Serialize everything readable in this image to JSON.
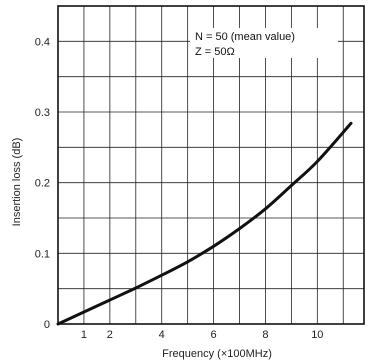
{
  "chart_data": {
    "type": "line",
    "title": "",
    "xlabel": "Frequency (×100MHz)",
    "ylabel": "Insertion loss (dB)",
    "xlim": [
      0,
      11.8
    ],
    "ylim": [
      0,
      0.45
    ],
    "x_ticks": [
      1,
      2,
      4,
      6,
      8,
      10
    ],
    "y_ticks": [
      0,
      0.1,
      0.2,
      0.3,
      0.4
    ],
    "y_tick_labels": [
      "0",
      "0.1",
      "0.2",
      "0.3",
      "0.4"
    ],
    "grid": true,
    "annotations": [
      "N = 50 (mean value)",
      "Z = 50Ω"
    ],
    "series": [
      {
        "x": [
          0,
          1,
          2,
          3,
          4,
          5,
          6,
          7,
          8,
          9,
          10,
          11.3
        ],
        "y": [
          0,
          0.017,
          0.034,
          0.051,
          0.069,
          0.088,
          0.11,
          0.135,
          0.163,
          0.196,
          0.23,
          0.284
        ]
      }
    ],
    "line_color": "#111111"
  }
}
